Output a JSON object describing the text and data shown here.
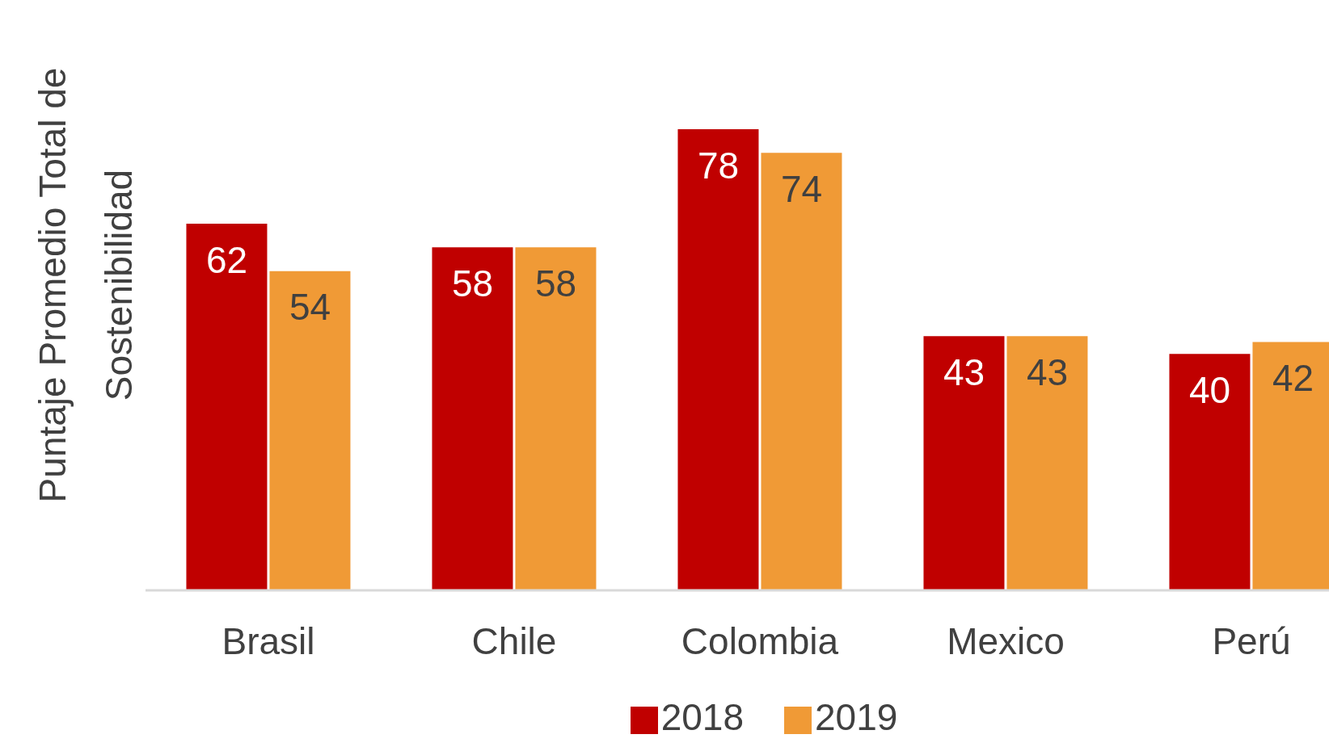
{
  "chart_data": {
    "type": "bar",
    "ylabel": "Puntaje Promedio Total de Sostenibilidad",
    "categories": [
      "Brasil",
      "Chile",
      "Colombia",
      "Mexico",
      "Perú"
    ],
    "series": [
      {
        "name": "2018",
        "color": "#c00000",
        "values": [
          62,
          58,
          78,
          43,
          40
        ]
      },
      {
        "name": "2019",
        "color": "#f09a36",
        "values": [
          54,
          58,
          74,
          43,
          42
        ]
      }
    ],
    "data_labels": true,
    "legend": "bottom"
  }
}
